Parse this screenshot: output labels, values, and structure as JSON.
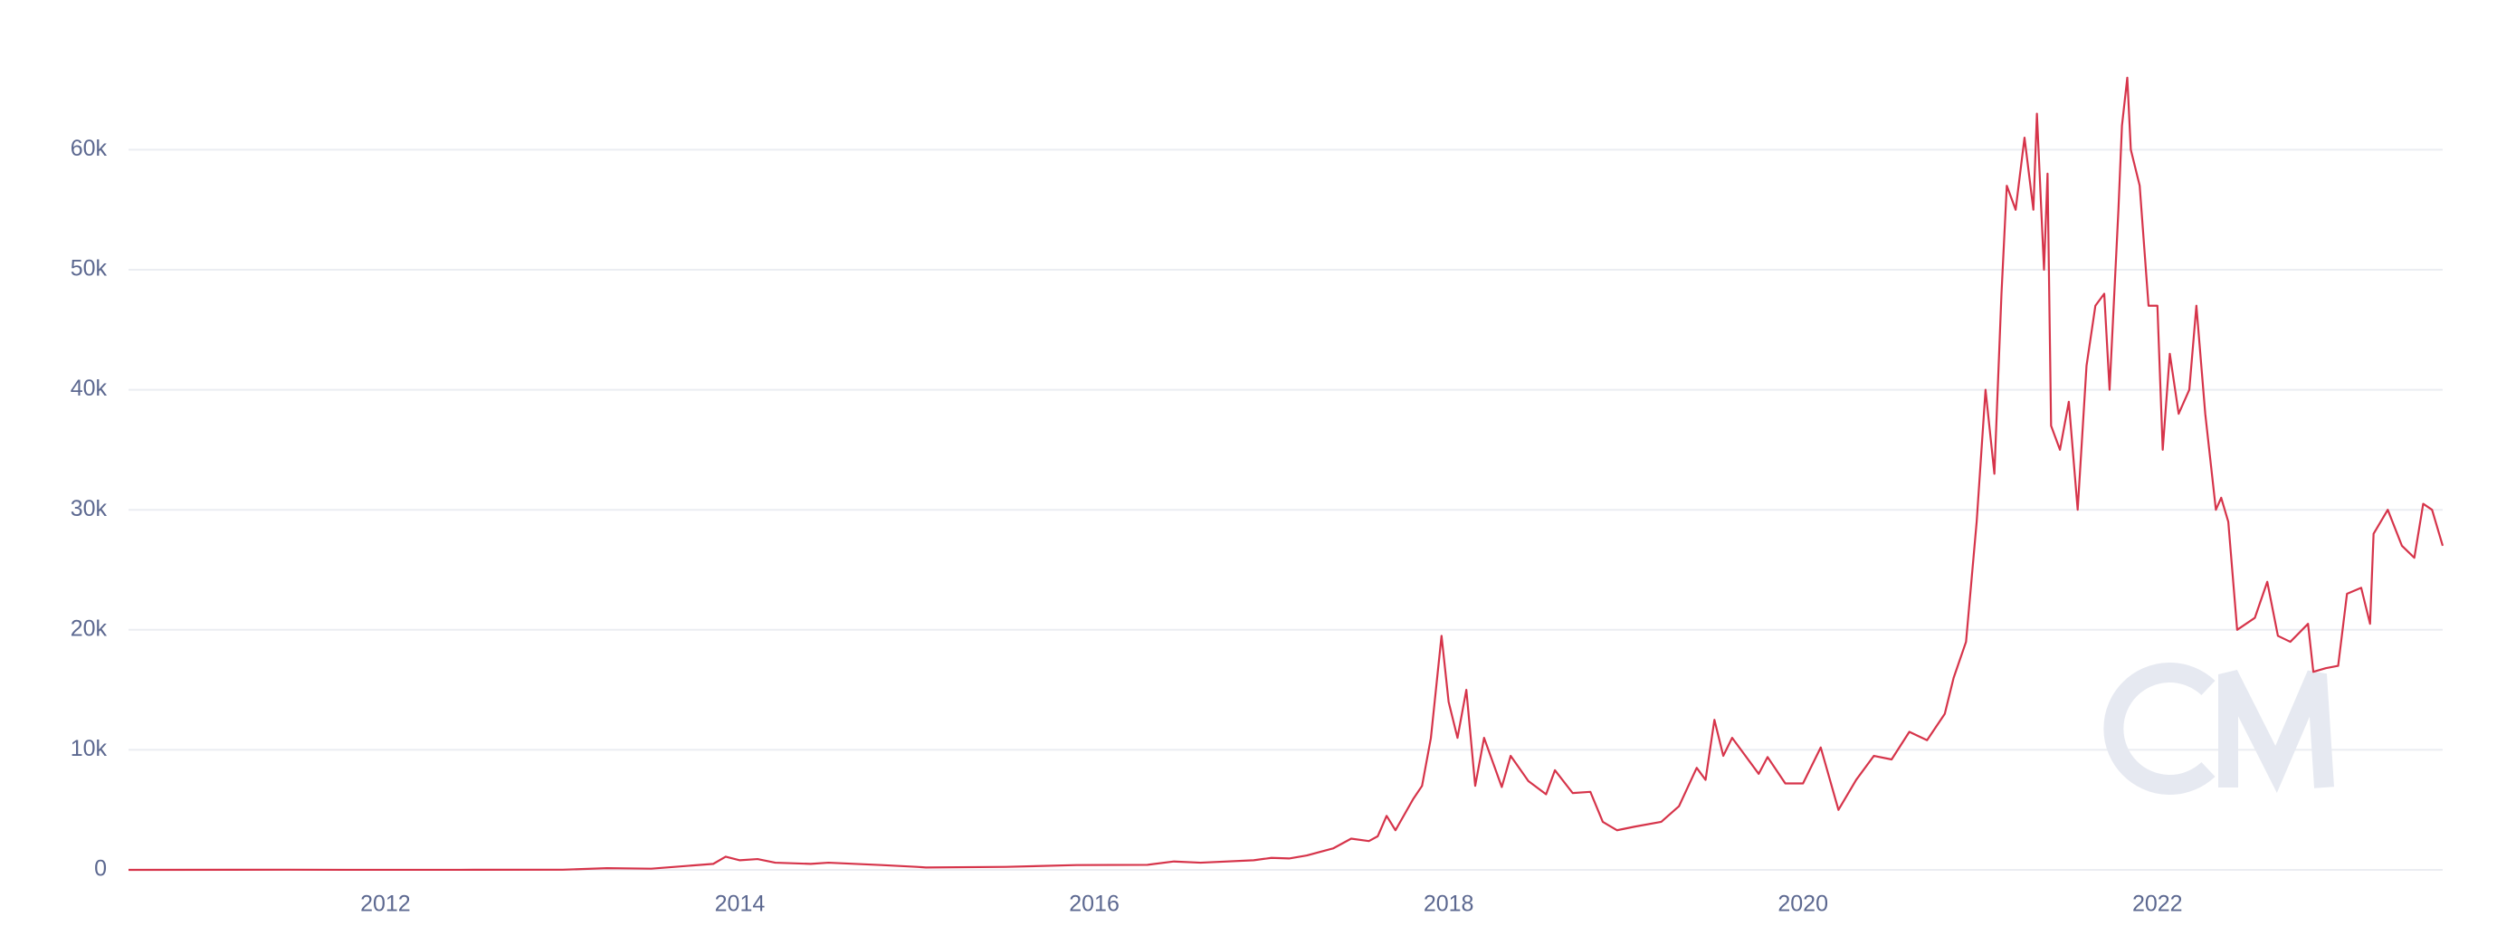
{
  "chart_data": {
    "type": "line",
    "x": [
      2010.55,
      2011.45,
      2011.9,
      2012.5,
      2013.0,
      2013.25,
      2013.5,
      2013.85,
      2013.92,
      2014.0,
      2014.1,
      2014.2,
      2014.4,
      2014.5,
      2014.8,
      2015.0,
      2015.05,
      2015.5,
      2015.9,
      2016.3,
      2016.45,
      2016.6,
      2016.9,
      2017.0,
      2017.1,
      2017.2,
      2017.35,
      2017.45,
      2017.55,
      2017.6,
      2017.65,
      2017.7,
      2017.8,
      2017.85,
      2017.9,
      2017.96,
      2018.0,
      2018.05,
      2018.1,
      2018.15,
      2018.2,
      2018.3,
      2018.35,
      2018.45,
      2018.55,
      2018.6,
      2018.7,
      2018.8,
      2018.87,
      2018.95,
      2019.05,
      2019.2,
      2019.3,
      2019.4,
      2019.45,
      2019.5,
      2019.55,
      2019.6,
      2019.75,
      2019.8,
      2019.9,
      2020.0,
      2020.1,
      2020.2,
      2020.3,
      2020.4,
      2020.5,
      2020.6,
      2020.7,
      2020.8,
      2020.85,
      2020.92,
      2020.98,
      2021.03,
      2021.08,
      2021.12,
      2021.15,
      2021.2,
      2021.25,
      2021.3,
      2021.32,
      2021.36,
      2021.38,
      2021.4,
      2021.45,
      2021.5,
      2021.55,
      2021.6,
      2021.65,
      2021.7,
      2021.73,
      2021.78,
      2021.8,
      2021.83,
      2021.85,
      2021.9,
      2021.95,
      2022.0,
      2022.03,
      2022.07,
      2022.12,
      2022.18,
      2022.22,
      2022.27,
      2022.33,
      2022.36,
      2022.4,
      2022.45,
      2022.55,
      2022.62,
      2022.68,
      2022.75,
      2022.85,
      2022.88,
      2022.95,
      2023.02,
      2023.07,
      2023.15,
      2023.2,
      2023.22,
      2023.3,
      2023.38,
      2023.45,
      2023.5,
      2023.55,
      2023.61
    ],
    "series": [
      {
        "color": "#d6344a",
        "values": [
          0,
          15,
          3,
          7,
          13,
          140,
          100,
          500,
          1100,
          800,
          900,
          600,
          500,
          600,
          400,
          250,
          200,
          250,
          400,
          420,
          700,
          600,
          800,
          1000,
          950,
          1200,
          1800,
          2600,
          2400,
          2800,
          4500,
          3300,
          5900,
          7000,
          11000,
          19500,
          14000,
          11000,
          15000,
          7000,
          11000,
          6900,
          9500,
          7400,
          6300,
          8300,
          6400,
          6500,
          4000,
          3300,
          3600,
          4000,
          5300,
          8500,
          7500,
          12500,
          9500,
          11000,
          8000,
          9400,
          7200,
          7200,
          10200,
          5000,
          7500,
          9500,
          9200,
          11500,
          10800,
          13000,
          16000,
          19000,
          29000,
          40000,
          33000,
          48000,
          57000,
          55000,
          61000,
          55000,
          63000,
          50000,
          58000,
          37000,
          35000,
          39000,
          30000,
          42000,
          47000,
          48000,
          40000,
          55000,
          62000,
          66000,
          60000,
          57000,
          47000,
          47000,
          35000,
          43000,
          38000,
          40000,
          47000,
          38000,
          30000,
          31000,
          29000,
          20000,
          21000,
          24000,
          19500,
          19000,
          20500,
          16500,
          16800,
          17000,
          23000,
          23500,
          20500,
          28000,
          30000,
          27000,
          26000,
          30500,
          30000,
          27000
        ]
      }
    ],
    "xlim": [
      2010.55,
      2023.61
    ],
    "xticks": [
      2012,
      2014,
      2016,
      2018,
      2020,
      2022
    ],
    "ylim": [
      0,
      68400
    ],
    "yticks": [
      0,
      {
        "value": 10000,
        "label": "10k"
      },
      {
        "value": 20000,
        "label": "20k"
      },
      {
        "value": 30000,
        "label": "30k"
      },
      {
        "value": 40000,
        "label": "40k"
      },
      {
        "value": 50000,
        "label": "50k"
      },
      {
        "value": 60000,
        "label": "60k"
      }
    ],
    "grid": true
  }
}
